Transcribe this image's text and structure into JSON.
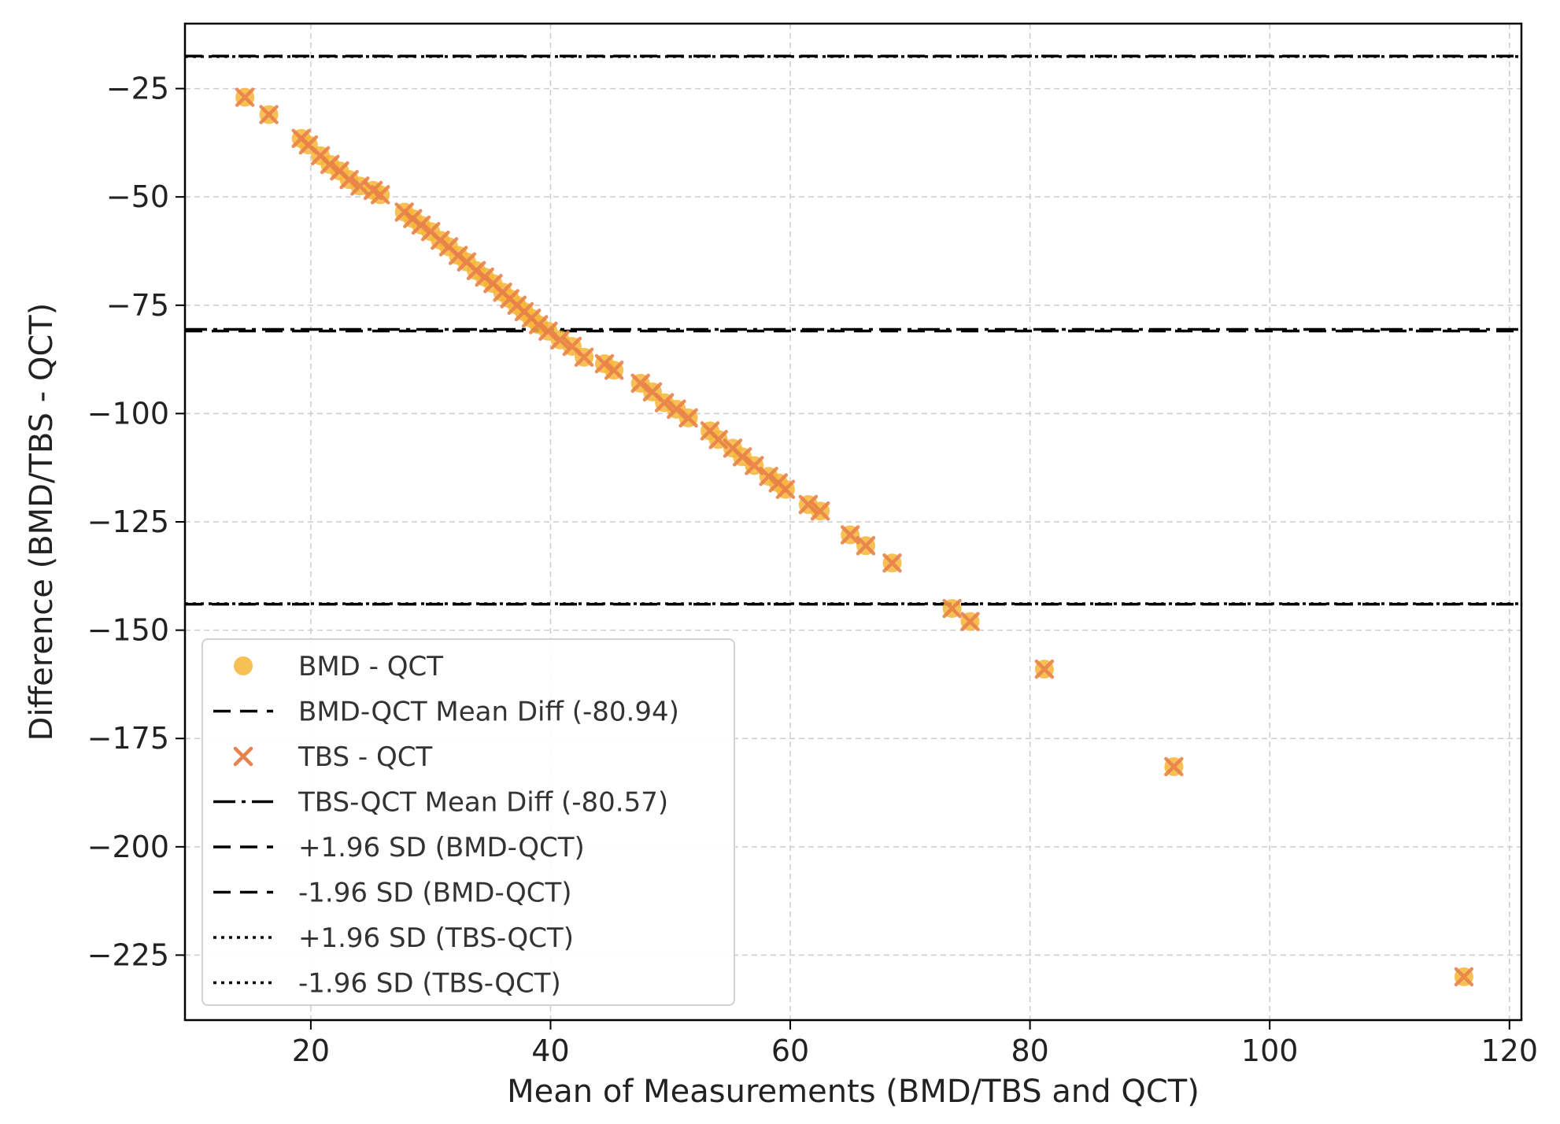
{
  "chart_data": {
    "type": "scatter",
    "title": "",
    "xlabel": "Mean of Measurements (BMD/TBS and QCT)",
    "ylabel": "Difference (BMD/TBS - QCT)",
    "xlim": [
      9.5,
      121
    ],
    "ylim": [
      -240,
      -10
    ],
    "x_ticks": [
      20,
      40,
      60,
      80,
      100,
      120
    ],
    "x_tick_labels": [
      "20",
      "40",
      "60",
      "80",
      "100",
      "120"
    ],
    "y_ticks": [
      -25,
      -50,
      -75,
      -100,
      -125,
      -150,
      -175,
      -200,
      -225
    ],
    "y_tick_labels": [
      "−25",
      "−50",
      "−75",
      "−100",
      "−125",
      "−150",
      "−175",
      "−200",
      "−225"
    ],
    "grid": true,
    "legend_position": "lower-left",
    "colors": {
      "bmd": "#f6b536",
      "tbs": "#e8824a",
      "line": "#000000"
    },
    "series": [
      {
        "name": "BMD - QCT",
        "marker": "circle",
        "x": [
          14.5,
          16.5,
          19.2,
          19.8,
          20.8,
          21.6,
          22.4,
          23.2,
          24.1,
          25.2,
          25.8,
          27.8,
          28.5,
          29.2,
          30,
          30.8,
          31.5,
          32.3,
          33,
          33.8,
          34.5,
          35.2,
          36,
          36.6,
          37.2,
          37.8,
          38.4,
          39,
          39.8,
          40.8,
          41.8,
          42.8,
          44.5,
          45.3,
          47.5,
          48.5,
          49.5,
          50.5,
          51.5,
          53.3,
          54,
          55.2,
          56,
          57,
          58.2,
          59,
          59.6,
          61.5,
          62.5,
          65,
          66.3,
          68.5,
          73.5,
          75,
          81.2,
          92,
          116.2
        ],
        "y": [
          -27,
          -31,
          -36.5,
          -38,
          -40.5,
          -42.5,
          -44,
          -46,
          -47.5,
          -48.5,
          -49.5,
          -53.5,
          -55,
          -56.5,
          -58,
          -60,
          -61.5,
          -63.5,
          -65,
          -67,
          -68.5,
          -70,
          -72,
          -73.5,
          -75,
          -76.5,
          -78,
          -79.5,
          -81,
          -83,
          -84.5,
          -87,
          -88.5,
          -90,
          -93,
          -95,
          -97.5,
          -99,
          -101,
          -104,
          -106,
          -108,
          -110,
          -112,
          -114.5,
          -116,
          -117.5,
          -121,
          -122.5,
          -128,
          -130.5,
          -134.5,
          -145,
          -148,
          -159,
          -181.5,
          -230
        ]
      },
      {
        "name": "TBS - QCT",
        "marker": "x",
        "x": [
          14.5,
          16.5,
          19.2,
          19.8,
          20.8,
          21.6,
          22.4,
          23.2,
          24.1,
          25.2,
          25.8,
          27.8,
          28.5,
          29.2,
          30,
          30.8,
          31.5,
          32.3,
          33,
          33.8,
          34.5,
          35.2,
          36,
          36.6,
          37.2,
          37.8,
          38.4,
          39,
          39.8,
          40.8,
          41.8,
          42.8,
          44.5,
          45.3,
          47.5,
          48.5,
          49.5,
          50.5,
          51.5,
          53.3,
          54,
          55.2,
          56,
          57,
          58.2,
          59,
          59.6,
          61.5,
          62.5,
          65,
          66.3,
          68.5,
          73.5,
          75,
          81.2,
          92,
          116.2
        ],
        "y": [
          -27,
          -31,
          -36.5,
          -38,
          -40.5,
          -42.5,
          -44,
          -46,
          -47.5,
          -48.5,
          -49.5,
          -53.5,
          -55,
          -56.5,
          -58,
          -60,
          -61.5,
          -63.5,
          -65,
          -67,
          -68.5,
          -70,
          -72,
          -73.5,
          -75,
          -76.5,
          -78,
          -79.5,
          -81,
          -83,
          -84.5,
          -87,
          -88.5,
          -90,
          -93,
          -95,
          -97.5,
          -99,
          -101,
          -104,
          -106,
          -108,
          -110,
          -112,
          -114.5,
          -116,
          -117.5,
          -121,
          -122.5,
          -128,
          -130.5,
          -134.5,
          -145,
          -148,
          -159,
          -181.5,
          -230
        ]
      }
    ],
    "reference_lines": [
      {
        "name": "BMD-QCT Mean Diff (-80.94)",
        "y": -80.94,
        "style": "dashed"
      },
      {
        "name": "TBS-QCT Mean Diff (-80.57)",
        "y": -80.57,
        "style": "dashdot"
      },
      {
        "name": "+1.96 SD (BMD-QCT)",
        "y": -17.5,
        "style": "dashed"
      },
      {
        "name": "-1.96 SD (BMD-QCT)",
        "y": -144,
        "style": "dashed"
      },
      {
        "name": "+1.96 SD (TBS-QCT)",
        "y": -17.6,
        "style": "dotted"
      },
      {
        "name": "-1.96 SD (TBS-QCT)",
        "y": -143.9,
        "style": "dotted"
      }
    ],
    "legend": [
      {
        "label": "BMD - QCT",
        "kind": "circle"
      },
      {
        "label": "BMD-QCT Mean Diff (-80.94)",
        "kind": "dashed"
      },
      {
        "label": "TBS - QCT",
        "kind": "x"
      },
      {
        "label": "TBS-QCT Mean Diff (-80.57)",
        "kind": "dashdot"
      },
      {
        "label": "+1.96 SD (BMD-QCT)",
        "kind": "dashed"
      },
      {
        "label": "-1.96 SD (BMD-QCT)",
        "kind": "dashed"
      },
      {
        "label": "+1.96 SD (TBS-QCT)",
        "kind": "dotted"
      },
      {
        "label": "-1.96 SD (TBS-QCT)",
        "kind": "dotted"
      }
    ]
  }
}
